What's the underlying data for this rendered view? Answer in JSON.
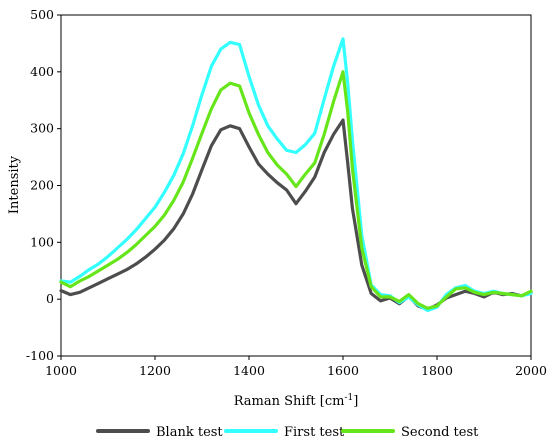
{
  "chart_data": {
    "type": "line",
    "title": "",
    "xlabel": "Raman Shift [cm",
    "xlabel_sup": "-1",
    "xlabel_suffix": "]",
    "ylabel": "Intensity",
    "xlim": [
      1000,
      2000
    ],
    "ylim": [
      -100,
      500
    ],
    "xticks": [
      "1000",
      "1200",
      "1400",
      "1600",
      "1800",
      "2000"
    ],
    "yticks": [
      "-100",
      "0",
      "100",
      "200",
      "300",
      "400",
      "500"
    ],
    "grid": false,
    "legend_position": "bottom",
    "x": [
      1000,
      1020,
      1040,
      1060,
      1080,
      1100,
      1120,
      1140,
      1160,
      1180,
      1200,
      1220,
      1240,
      1260,
      1280,
      1300,
      1320,
      1340,
      1360,
      1380,
      1400,
      1420,
      1440,
      1460,
      1480,
      1500,
      1520,
      1540,
      1560,
      1580,
      1600,
      1610,
      1620,
      1640,
      1660,
      1680,
      1700,
      1720,
      1740,
      1760,
      1780,
      1800,
      1820,
      1840,
      1860,
      1880,
      1900,
      1920,
      1940,
      1960,
      1980,
      2000
    ],
    "series": [
      {
        "name": "Blank test",
        "color": "#4d4d4d",
        "values": [
          15,
          8,
          12,
          20,
          28,
          36,
          44,
          52,
          62,
          74,
          88,
          104,
          124,
          150,
          185,
          228,
          270,
          298,
          305,
          300,
          268,
          238,
          220,
          205,
          192,
          168,
          190,
          215,
          258,
          290,
          315,
          240,
          160,
          60,
          10,
          -3,
          2,
          -8,
          5,
          -12,
          -18,
          -10,
          2,
          8,
          14,
          10,
          4,
          12,
          8,
          10,
          6,
          12
        ]
      },
      {
        "name": "First test",
        "color": "#33ffff",
        "values": [
          32,
          30,
          40,
          52,
          62,
          75,
          90,
          105,
          122,
          142,
          162,
          188,
          218,
          256,
          305,
          360,
          410,
          440,
          452,
          448,
          392,
          342,
          305,
          282,
          262,
          258,
          272,
          292,
          352,
          410,
          458,
          380,
          280,
          112,
          25,
          8,
          6,
          -6,
          4,
          -10,
          -20,
          -14,
          8,
          20,
          24,
          14,
          10,
          14,
          10,
          8,
          6,
          10
        ]
      },
      {
        "name": "Second test",
        "color": "#66e61a",
        "values": [
          30,
          22,
          32,
          40,
          50,
          60,
          70,
          82,
          96,
          112,
          128,
          148,
          174,
          206,
          248,
          292,
          335,
          368,
          380,
          375,
          328,
          290,
          258,
          236,
          220,
          198,
          220,
          240,
          290,
          348,
          400,
          330,
          230,
          90,
          22,
          4,
          4,
          -4,
          8,
          -8,
          -16,
          -12,
          4,
          18,
          20,
          12,
          8,
          12,
          10,
          8,
          6,
          14
        ]
      }
    ]
  }
}
